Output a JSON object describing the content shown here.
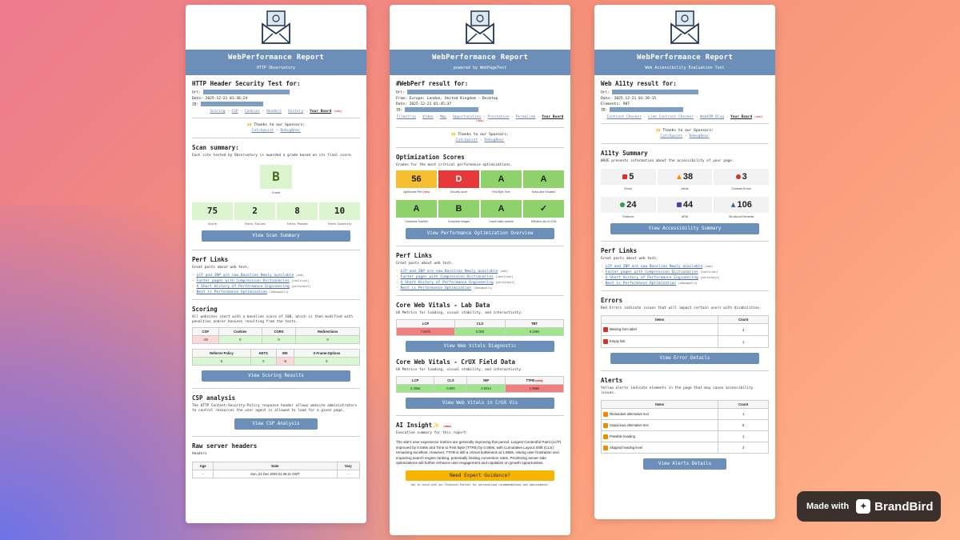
{
  "card1": {
    "header_title": "WebPerformance Report",
    "header_sub": "HTTP Observatory",
    "test_title": "HTTP Header Security Test for:",
    "url_label": "Url:",
    "date_label": "Date:",
    "date": "2025-12-21 01:36:24",
    "id_label": "ID:",
    "nav": [
      "Scoring",
      "CSP",
      "Cookies",
      "Headers",
      "History"
    ],
    "nav_board": "Your Board",
    "nav_new": "(new)",
    "sponsors_title": "🙌 Thanks to our Sponsors:",
    "sponsor1": "Catchpoint",
    "sponsor2": "DebugBear",
    "scan_title": "Scan summary:",
    "scan_desc": "Each site tested by Observatory is awarded a grade based on its final score.",
    "grade": "B",
    "grade_caption": "Grade",
    "stats": [
      {
        "v": "75",
        "l": "Score"
      },
      {
        "v": "2",
        "l": "Tests Failed"
      },
      {
        "v": "8",
        "l": "Tests Passed"
      },
      {
        "v": "10",
        "l": "Tests Quantity"
      }
    ],
    "scan_btn": "View Scan Summary",
    "perf_title": "Perf Links",
    "perf_desc": "Great posts about web tech.",
    "links": [
      {
        "t": "LCP and INP are now Baseline Newly available",
        "g": "[web]"
      },
      {
        "t": "Faster pages with Compression Dictionaries",
        "g": "[tomlicion]"
      },
      {
        "t": "A Short History of Performance Engineering",
        "g": "[perfplanet]"
      },
      {
        "t": "Next is Performance Optimization",
        "g": "[debugwalls]"
      }
    ],
    "scoring_title": "Scoring",
    "scoring_desc": "All websites start with a baseline score of 100, which is then modified with penalties and/or bonuses resulting from the tests.",
    "t1_head": [
      "CSP",
      "Cookies",
      "CORS",
      "Redirections"
    ],
    "t1_vals": [
      "-20",
      "0",
      "0",
      "0"
    ],
    "t2_head": [
      "Referrer Policy",
      "HSTS",
      "SRI",
      "X-Frame-Options"
    ],
    "t2_vals": [
      "5",
      "0",
      "-5",
      "0"
    ],
    "scoring_btn": "View Scoring Results",
    "csp_title": "CSP analysis",
    "csp_desc": "The HTTP Content-Security-Policy response header allows website administrators to control resources the user agent is allowed to load for a given page.",
    "csp_btn": "View CSP Analysis",
    "raw_title": "Raw server headers",
    "raw_sub": "Headers",
    "raw_head": [
      "Age",
      "Date",
      "Vary"
    ],
    "raw_vals": [
      "-",
      "Sun, 21 Dec 2025 01:36:21 GMT",
      "-"
    ]
  },
  "card2": {
    "header_title": "WebPerformance Report",
    "header_sub": "powered by WebPageTest",
    "test_title": "#WebPerf result for:",
    "url_label": "Url:",
    "from_label": "From:",
    "from": "Europe: London, United Kingdom - Desktop",
    "date_label": "Date:",
    "date": "2025-12-21 01:45:37",
    "id_label": "ID:",
    "nav": [
      "Filmstrip",
      "Video",
      "Map",
      "Opportunities",
      "Prostation",
      "Permalink"
    ],
    "nav_board": "Your Board",
    "nav_new": "(new)",
    "sponsors_title": "🙌 Thanks to our Sponsors:",
    "sponsor1": "Catchpoint",
    "sponsor2": "DebugBear",
    "opt_title": "Optimization Scores",
    "opt_desc": "Grades for the most critical performance optimizations.",
    "scores1": [
      {
        "v": "56",
        "l": "Lighthouse Perf",
        "n": "(new)"
      },
      {
        "v": "D",
        "l": "Security score",
        "n": ""
      },
      {
        "v": "A",
        "l": "First Byte Time",
        "n": ""
      },
      {
        "v": "A",
        "l": "Keep-alive Enabled",
        "n": ""
      }
    ],
    "scores2": [
      {
        "v": "A",
        "l": "Compress Transfer"
      },
      {
        "v": "B",
        "l": "Compress Images"
      },
      {
        "v": "A",
        "l": "Cache static content"
      },
      {
        "v": "✓",
        "l": "Effective use of CDN"
      }
    ],
    "opt_btn": "View Performance Optimization Overview",
    "perf_title": "Perf Links",
    "perf_desc": "Great posts about web tech.",
    "links": [
      {
        "t": "LCP and INP are now Baseline Newly available",
        "g": "[web]"
      },
      {
        "t": "Faster pages with Compression Dictionaries",
        "g": "[tomlicion]"
      },
      {
        "t": "A Short History of Performance Engineering",
        "g": "[perfplanet]"
      },
      {
        "t": "Next is Performance Optimization",
        "g": "[debugwalls]"
      }
    ],
    "lab_title": "Core Web Vitals - Lab Data",
    "lab_desc": "UX Metrics for loading, visual stability, and interactivity.",
    "lab_head": [
      "LCP",
      "CLS",
      "TBT"
    ],
    "lab_vals": [
      "7.947s",
      "0.002",
      "0.239s"
    ],
    "lab_btn": "View Web Vitals Diagnostic",
    "crux_title": "Core Web Vitals - CrUX Field Data",
    "crux_desc": "UX Metrics for loading, visual stability, and interactivity.",
    "crux_head": [
      "LCP",
      "CLS",
      "INP",
      "TTFB"
    ],
    "crux_new": "(new)",
    "crux_vals": [
      "2.305s",
      "0.000",
      "0.061s",
      "1.958s"
    ],
    "crux_btn": "View Web Vitals in CrUX Vis",
    "ai_title": "AI Insight✨",
    "ai_new": "(new)",
    "ai_sub": "Executive summary for this report:",
    "ai_text": "The site's user experience metrics are generally improving this period. Largest Contentful Paint (LCP) improved by 0.046s and Time to First Byte (TTFB) by 0.059s, with Cumulative Layout Shift (CLS) remaining excellent. However, TTFB is still a critical bottleneck at 1.958s, risking user frustration and impacting search engine ranking, potentially limiting conversion rates. Prioritizing server-side optimizations will further enhance user engagement and capitalize on growth opportunities.",
    "expert_btn": "Need Expert Guidance?",
    "expert_sub": "Get in touch with our Technical Partner for personalized recommendations and improvements."
  },
  "card3": {
    "header_title": "WebPerformance Report",
    "header_sub": "Web Accessibility Evaluation Tool",
    "test_title": "Web A11ty result for:",
    "url_label": "Url:",
    "date_label": "Date:",
    "date": "2025-12-21 01:39:15",
    "elements_label": "Elements:",
    "elements": "987",
    "id_label": "ID:",
    "nav": [
      "Contrast Checker",
      "Link Contrast Checker",
      "WebAIM Blog"
    ],
    "nav_board": "Your Board",
    "nav_new": "(new)",
    "sponsors_title": "🙌 Thanks to our Sponsors:",
    "sponsor1": "Catchpoint",
    "sponsor2": "DebugBear",
    "sum_title": "A11ty Summary",
    "sum_desc": "WAVE presents information about the accessibility of your page.",
    "row1": [
      {
        "v": "5",
        "l": "Errors",
        "c": "#d9302c"
      },
      {
        "v": "38",
        "l": "Alerts",
        "c": "#f08c00"
      },
      {
        "v": "3",
        "l": "Contrast Errors",
        "c": "#d9302c"
      }
    ],
    "row2": [
      {
        "v": "24",
        "l": "Features",
        "c": "#2e9e4a"
      },
      {
        "v": "44",
        "l": "ARIA",
        "c": "#5a3ab0"
      },
      {
        "v": "106",
        "l": "Structural Elements",
        "c": "#3a66b0"
      }
    ],
    "sum_btn": "View Accessibility Summary",
    "perf_title": "Perf Links",
    "perf_desc": "Great posts about web tech.",
    "links": [
      {
        "t": "LCP and INP are now Baseline Newly available",
        "g": "[web]"
      },
      {
        "t": "Faster pages with Compression Dictionaries",
        "g": "[tomlicion]"
      },
      {
        "t": "A Short History of Performance Engineering",
        "g": "[perfplanet]"
      },
      {
        "t": "Next is Performance Optimization",
        "g": "[debugwalls]"
      }
    ],
    "err_title": "Errors",
    "err_desc": "Red Errors indicate issues that will impact certain users with disabilities.",
    "items_head": "Items",
    "count_head": "Count",
    "errors": [
      {
        "t": "Missing form label",
        "c": "4"
      },
      {
        "t": "Empty link",
        "c": "1"
      }
    ],
    "err_btn": "View Error Details",
    "al_title": "Alerts",
    "al_desc": "Yellow alerts indicate elements in the page that may cause accessibility issues.",
    "alerts": [
      {
        "t": "Redundant alternative text",
        "c": "1"
      },
      {
        "t": "Suspicious alternative text",
        "c": "6"
      },
      {
        "t": "Possible heading",
        "c": "1"
      },
      {
        "t": "Skipped heading level",
        "c": "2"
      }
    ],
    "al_btn": "View Alerts Details"
  },
  "brand": {
    "made": "Made with",
    "name": "BrandBird"
  }
}
